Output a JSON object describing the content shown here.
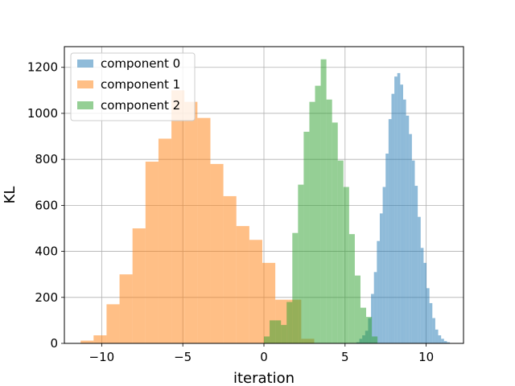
{
  "chart_data": {
    "type": "bar",
    "subtype": "histogram",
    "xlabel": "iteration",
    "ylabel": "KL",
    "xlim": [
      -12.3,
      12.3
    ],
    "ylim": [
      0,
      1290
    ],
    "xticks": [
      -10,
      -5,
      0,
      5,
      10
    ],
    "xtick_labels": [
      "−10",
      "−5",
      "0",
      "5",
      "10"
    ],
    "yticks": [
      0,
      200,
      400,
      600,
      800,
      1000,
      1200
    ],
    "ytick_labels": [
      "0",
      "200",
      "400",
      "600",
      "800",
      "1000",
      "1200"
    ],
    "grid": true,
    "legend_position": "top-left",
    "series": [
      {
        "name": "component 0",
        "color": "#1f77b4",
        "opacity": 0.5,
        "bin_start": 5.7,
        "bin_width": 0.18,
        "counts": [
          5,
          20,
          35,
          55,
          110,
          215,
          310,
          445,
          565,
          680,
          825,
          975,
          1085,
          1160,
          1175,
          1125,
          1060,
          990,
          910,
          795,
          685,
          550,
          415,
          350,
          240,
          175,
          110,
          60,
          35,
          20,
          10,
          5
        ]
      },
      {
        "name": "component 1",
        "color": "#ff7f0e",
        "opacity": 0.5,
        "bin_start": -11.3,
        "bin_width": 0.8,
        "counts": [
          12,
          35,
          170,
          300,
          500,
          790,
          890,
          1100,
          1050,
          980,
          780,
          640,
          510,
          450,
          350,
          190,
          190,
          20
        ]
      },
      {
        "name": "component 2",
        "color": "#2ca02c",
        "opacity": 0.5,
        "bin_start": 0,
        "bin_width": 0.35,
        "counts": [
          30,
          100,
          100,
          80,
          180,
          480,
          690,
          920,
          1050,
          1120,
          1235,
          1060,
          960,
          795,
          680,
          475,
          295,
          155,
          115,
          30
        ]
      }
    ]
  }
}
